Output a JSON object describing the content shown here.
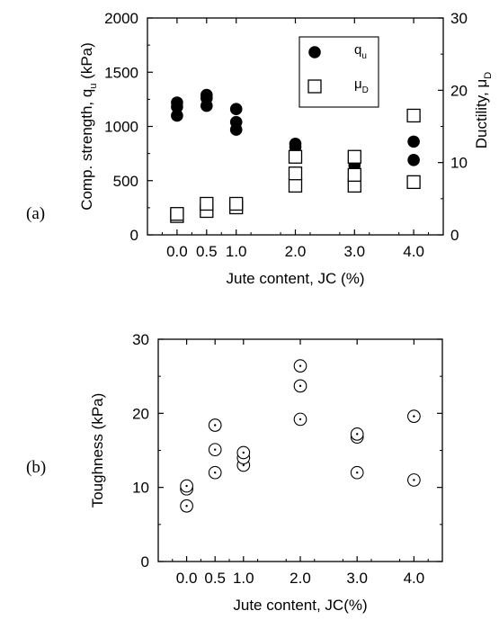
{
  "chart_data": [
    {
      "panel_label": "(a)",
      "type": "scatter",
      "xlabel": "Jute content, JC (%)",
      "ylabel": "Comp. strength, q",
      "ylabel_sub": "u",
      "ylabel_unit": " (kPa)",
      "y2label": "Ductility, μ",
      "y2label_sub": "D",
      "x_ticks": [
        "0.0",
        "0.5",
        "1.0",
        "2.0",
        "3.0",
        "4.0"
      ],
      "x_positions": [
        0,
        0.5,
        1.0,
        2.0,
        3.0,
        4.0
      ],
      "xlim": [
        -0.5,
        4.5
      ],
      "ylim": [
        0,
        2000
      ],
      "y_ticks": [
        0,
        500,
        1000,
        1500,
        2000
      ],
      "y2lim": [
        0,
        30
      ],
      "y2_ticks": [
        0,
        10,
        20,
        30
      ],
      "legend": {
        "placement": "top-right",
        "entries": [
          {
            "symbol": "q",
            "sub": "u",
            "marker": "filled-circle"
          },
          {
            "symbol": "μ",
            "sub": "D",
            "marker": "open-square"
          }
        ]
      },
      "series": [
        {
          "name": "qu",
          "axis": "left",
          "marker": "filled-circle",
          "points": [
            [
              0,
              1100
            ],
            [
              0,
              1180
            ],
            [
              0,
              1220
            ],
            [
              0.5,
              1190
            ],
            [
              0.5,
              1260
            ],
            [
              0.5,
              1290
            ],
            [
              1.0,
              970
            ],
            [
              1.0,
              1040
            ],
            [
              1.0,
              1160
            ],
            [
              2.0,
              810
            ],
            [
              2.0,
              840
            ],
            [
              3.0,
              640
            ],
            [
              4.0,
              690
            ],
            [
              4.0,
              860
            ]
          ]
        },
        {
          "name": "μD",
          "axis": "right",
          "marker": "open-square",
          "points": [
            [
              0,
              2.6
            ],
            [
              0,
              2.9
            ],
            [
              0.5,
              3.3
            ],
            [
              0.5,
              4.3
            ],
            [
              1.0,
              3.8
            ],
            [
              1.0,
              4.3
            ],
            [
              2.0,
              6.8
            ],
            [
              2.0,
              8.5
            ],
            [
              2.0,
              10.8
            ],
            [
              3.0,
              6.8
            ],
            [
              3.0,
              8.3
            ],
            [
              3.0,
              10.8
            ],
            [
              4.0,
              7.3
            ],
            [
              4.0,
              16.5
            ]
          ]
        }
      ]
    },
    {
      "panel_label": "(b)",
      "type": "scatter",
      "xlabel": "Jute content, JC(%)",
      "ylabel": "Toughness (kPa)",
      "x_ticks": [
        "0.0",
        "0.5",
        "1.0",
        "2.0",
        "3.0",
        "4.0"
      ],
      "x_positions": [
        0,
        0.5,
        1.0,
        2.0,
        3.0,
        4.0
      ],
      "xlim": [
        -0.5,
        4.5
      ],
      "ylim": [
        0,
        30
      ],
      "y_ticks": [
        0,
        10,
        20,
        30
      ],
      "series": [
        {
          "marker": "circle-dot",
          "points": [
            [
              0,
              7.5
            ],
            [
              0,
              9.8
            ],
            [
              0,
              10.2
            ],
            [
              0.5,
              12.0
            ],
            [
              0.5,
              15.1
            ],
            [
              0.5,
              18.4
            ],
            [
              1.0,
              13.0
            ],
            [
              1.0,
              14.0
            ],
            [
              1.0,
              14.7
            ],
            [
              2.0,
              19.2
            ],
            [
              2.0,
              23.7
            ],
            [
              2.0,
              26.4
            ],
            [
              3.0,
              12.0
            ],
            [
              3.0,
              16.8
            ],
            [
              3.0,
              17.2
            ],
            [
              4.0,
              11.0
            ],
            [
              4.0,
              19.6
            ]
          ]
        }
      ]
    }
  ]
}
